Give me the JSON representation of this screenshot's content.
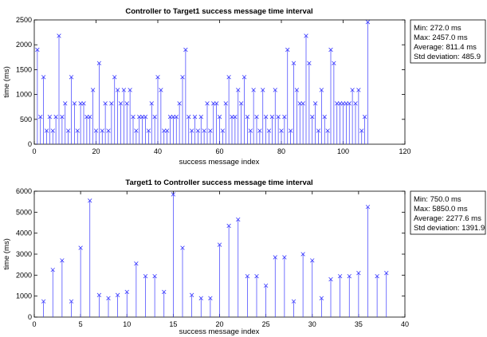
{
  "chart_data": [
    {
      "type": "stem",
      "title": "Controller to Target1 success message time interval",
      "xlabel": "success message index",
      "ylabel": "time (ms)",
      "xlim": [
        0,
        120
      ],
      "ylim": [
        0,
        2500
      ],
      "xticks": [
        0,
        20,
        40,
        60,
        80,
        100,
        120
      ],
      "yticks": [
        0,
        500,
        1000,
        1500,
        2000,
        2500
      ],
      "color": "#3a3aff",
      "x": [
        1,
        2,
        3,
        4,
        5,
        6,
        7,
        8,
        9,
        10,
        11,
        12,
        13,
        14,
        15,
        16,
        17,
        18,
        19,
        20,
        21,
        22,
        23,
        24,
        25,
        26,
        27,
        28,
        29,
        30,
        31,
        32,
        33,
        34,
        35,
        36,
        37,
        38,
        39,
        40,
        41,
        42,
        43,
        44,
        45,
        46,
        47,
        48,
        49,
        50,
        51,
        52,
        53,
        54,
        55,
        56,
        57,
        58,
        59,
        60,
        61,
        62,
        63,
        64,
        65,
        66,
        67,
        68,
        69,
        70,
        71,
        72,
        73,
        74,
        75,
        76,
        77,
        78,
        79,
        80,
        81,
        82,
        83,
        84,
        85,
        86,
        87,
        88,
        89,
        90,
        91,
        92,
        93,
        94,
        95,
        96,
        97,
        98,
        99,
        100,
        101,
        102,
        103,
        104,
        105,
        106,
        107,
        108
      ],
      "y": [
        1900,
        550,
        1350,
        272,
        550,
        272,
        550,
        2180,
        550,
        820,
        272,
        1350,
        820,
        272,
        820,
        820,
        550,
        550,
        1090,
        272,
        1630,
        272,
        820,
        272,
        820,
        1350,
        1090,
        820,
        1090,
        820,
        1090,
        550,
        272,
        550,
        550,
        550,
        272,
        820,
        550,
        1350,
        1090,
        272,
        272,
        550,
        550,
        550,
        820,
        1350,
        1900,
        550,
        272,
        550,
        272,
        550,
        272,
        820,
        272,
        820,
        820,
        550,
        272,
        820,
        1350,
        550,
        550,
        1090,
        820,
        1350,
        550,
        272,
        1090,
        550,
        272,
        1090,
        550,
        272,
        550,
        1090,
        550,
        272,
        550,
        1900,
        272,
        1630,
        1090,
        820,
        820,
        2180,
        1630,
        550,
        820,
        272,
        1090,
        550,
        272,
        1900,
        1630,
        820,
        820,
        820,
        820,
        820,
        1090,
        820,
        1090,
        272,
        550,
        2457
      ]
    },
    {
      "type": "stem",
      "title": "Target1 to Controller success message time interval",
      "xlabel": "success message index",
      "ylabel": "time (ms)",
      "xlim": [
        0,
        40
      ],
      "ylim": [
        0,
        6000
      ],
      "xticks": [
        0,
        5,
        10,
        15,
        20,
        25,
        30,
        35,
        40
      ],
      "yticks": [
        0,
        1000,
        2000,
        3000,
        4000,
        5000,
        6000
      ],
      "color": "#3a3aff",
      "x": [
        1,
        2,
        3,
        4,
        5,
        6,
        7,
        8,
        9,
        10,
        11,
        12,
        13,
        14,
        15,
        16,
        17,
        18,
        19,
        20,
        21,
        22,
        23,
        24,
        25,
        26,
        27,
        28,
        29,
        30,
        31,
        32,
        33,
        34,
        35,
        36,
        37,
        38
      ],
      "y": [
        750,
        2250,
        2700,
        750,
        3300,
        5550,
        1050,
        900,
        1050,
        1200,
        2550,
        1950,
        1950,
        1200,
        5850,
        3300,
        1050,
        900,
        900,
        3450,
        4350,
        4650,
        1950,
        1950,
        1500,
        2850,
        2850,
        750,
        3000,
        2700,
        900,
        1800,
        1950,
        1950,
        2100,
        5250,
        1950,
        2100
      ]
    }
  ],
  "stats": [
    {
      "min": "Min: 272.0 ms",
      "max": "Max: 2457.0 ms",
      "average": "Average: 811.4 ms",
      "std": "Std deviation: 485.9"
    },
    {
      "min": "Min: 750.0 ms",
      "max": "Max: 5850.0 ms",
      "average": "Average: 2277.6 ms",
      "std": "Std deviation: 1391.9"
    }
  ]
}
